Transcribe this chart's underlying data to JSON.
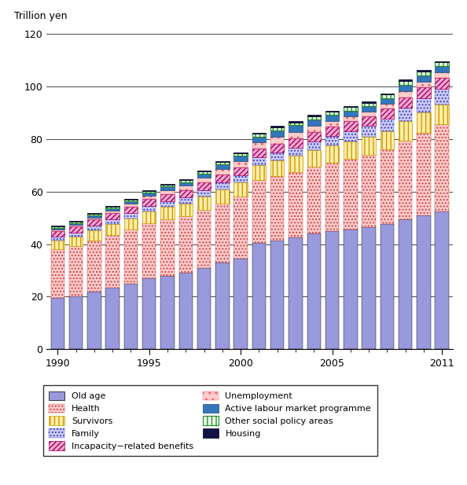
{
  "years": [
    1990,
    1991,
    1992,
    1993,
    1994,
    1995,
    1996,
    1997,
    1998,
    1999,
    2000,
    2001,
    2002,
    2003,
    2004,
    2005,
    2006,
    2007,
    2008,
    2009,
    2010,
    2011
  ],
  "old_age": [
    19.5,
    20.2,
    22.0,
    23.5,
    25.0,
    27.0,
    28.0,
    29.0,
    31.0,
    33.0,
    34.5,
    40.5,
    41.5,
    42.5,
    44.0,
    45.0,
    45.5,
    46.5,
    47.5,
    49.5,
    51.0,
    52.5
  ],
  "health": [
    18.5,
    19.0,
    19.5,
    20.0,
    20.5,
    21.0,
    21.5,
    21.5,
    22.0,
    22.5,
    23.5,
    24.0,
    24.5,
    25.0,
    25.5,
    26.0,
    27.0,
    27.5,
    28.5,
    30.0,
    31.5,
    33.0
  ],
  "survivors": [
    3.5,
    3.7,
    3.9,
    4.1,
    4.3,
    4.5,
    4.7,
    4.9,
    5.1,
    5.3,
    5.5,
    5.7,
    5.9,
    6.1,
    6.3,
    6.5,
    6.7,
    6.9,
    7.1,
    7.3,
    7.5,
    7.7
  ],
  "family": [
    1.5,
    1.6,
    1.7,
    1.8,
    1.9,
    2.0,
    2.2,
    2.3,
    2.4,
    2.6,
    2.7,
    2.9,
    3.1,
    3.2,
    3.4,
    3.6,
    3.8,
    4.0,
    4.5,
    5.0,
    5.5,
    6.0
  ],
  "incapacity": [
    2.0,
    2.1,
    2.2,
    2.4,
    2.5,
    2.6,
    2.7,
    2.8,
    2.9,
    3.0,
    3.1,
    3.2,
    3.3,
    3.4,
    3.5,
    3.6,
    3.7,
    3.8,
    3.9,
    4.0,
    4.1,
    4.2
  ],
  "unemployment": [
    0.5,
    0.6,
    0.7,
    0.9,
    1.1,
    1.3,
    1.5,
    1.7,
    1.9,
    2.1,
    2.3,
    2.5,
    2.7,
    2.5,
    2.3,
    2.1,
    1.9,
    1.7,
    1.8,
    2.5,
    2.3,
    2.1
  ],
  "almp": [
    0.8,
    0.8,
    0.9,
    1.0,
    1.1,
    1.2,
    1.3,
    1.4,
    1.6,
    1.8,
    2.0,
    2.2,
    2.4,
    2.5,
    2.4,
    2.3,
    2.2,
    2.1,
    2.2,
    2.4,
    2.3,
    2.2
  ],
  "other": [
    0.5,
    0.5,
    0.5,
    0.6,
    0.6,
    0.7,
    0.7,
    0.8,
    0.8,
    0.9,
    1.0,
    1.0,
    1.1,
    1.1,
    1.2,
    1.2,
    1.3,
    1.3,
    1.4,
    1.4,
    1.5,
    1.5
  ],
  "housing": [
    0.3,
    0.3,
    0.3,
    0.3,
    0.3,
    0.3,
    0.3,
    0.3,
    0.3,
    0.3,
    0.4,
    0.4,
    0.4,
    0.5,
    0.5,
    0.5,
    0.5,
    0.5,
    0.5,
    0.5,
    0.5,
    0.5
  ],
  "ylim": [
    0,
    120
  ],
  "yticks": [
    0,
    20,
    40,
    60,
    80,
    100,
    120
  ],
  "ylabel": "Trillion yen",
  "bar_width": 0.75
}
